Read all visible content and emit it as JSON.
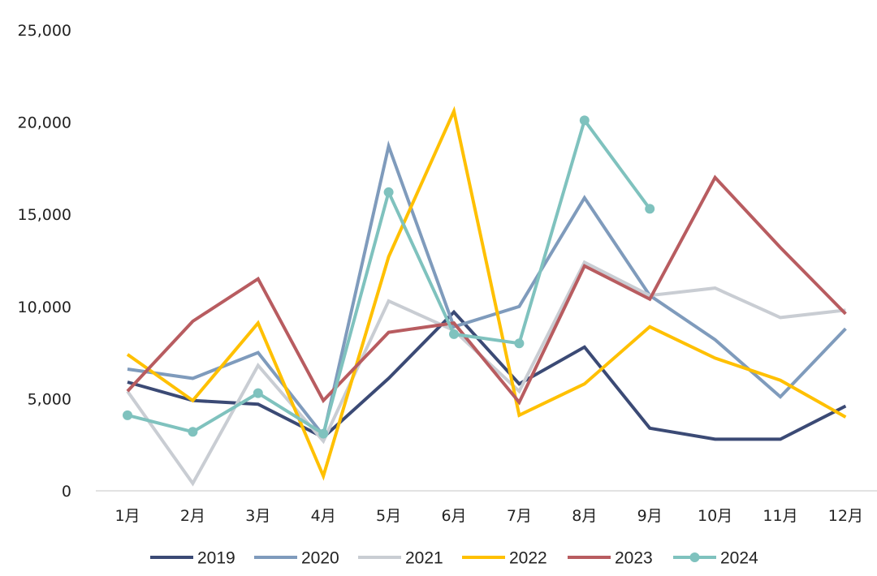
{
  "chart_data": {
    "type": "line",
    "title": "",
    "xlabel": "",
    "ylabel": "",
    "categories": [
      "1月",
      "2月",
      "3月",
      "4月",
      "5月",
      "6月",
      "7月",
      "8月",
      "9月",
      "10月",
      "11月",
      "12月"
    ],
    "y_ticks": [
      "0",
      "5,000",
      "10,000",
      "15,000",
      "20,000",
      "25,000"
    ],
    "ylim": [
      0,
      25000
    ],
    "grid": false,
    "legend_position": "bottom",
    "series": [
      {
        "name": "2019",
        "color": "#3B4A75",
        "markers": false,
        "values": [
          5900,
          4900,
          4700,
          2900,
          6100,
          9700,
          5800,
          7800,
          3400,
          2800,
          2800,
          4600
        ]
      },
      {
        "name": "2020",
        "color": "#7F9BBC",
        "markers": false,
        "values": [
          6600,
          6100,
          7500,
          3000,
          18700,
          8900,
          10000,
          15900,
          10600,
          8200,
          5100,
          8800
        ]
      },
      {
        "name": "2021",
        "color": "#C9CDD3",
        "markers": false,
        "values": [
          5400,
          400,
          6800,
          2700,
          10300,
          8700,
          5400,
          12400,
          10600,
          11000,
          9400,
          9800
        ]
      },
      {
        "name": "2022",
        "color": "#FFC000",
        "markers": false,
        "values": [
          7400,
          4900,
          9100,
          800,
          12700,
          20600,
          4100,
          5800,
          8900,
          7200,
          6000,
          4000
        ]
      },
      {
        "name": "2023",
        "color": "#B85C60",
        "markers": false,
        "values": [
          5400,
          9200,
          11500,
          4900,
          8600,
          9100,
          4800,
          12200,
          10400,
          17000,
          13200,
          9600
        ]
      },
      {
        "name": "2024",
        "color": "#7FC2BE",
        "markers": true,
        "values": [
          4100,
          3200,
          5300,
          3100,
          16200,
          8500,
          8000,
          20100,
          15300,
          null,
          null,
          null
        ]
      }
    ]
  }
}
